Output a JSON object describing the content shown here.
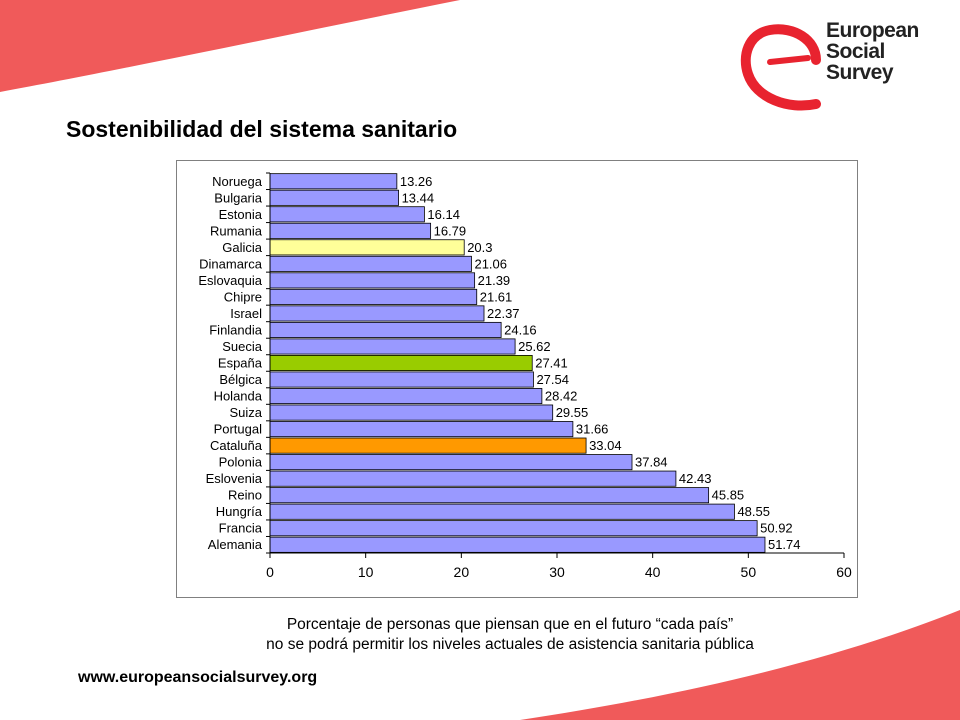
{
  "page": {
    "title": "Sostenibilidad del sistema sanitario",
    "caption_line1": "Porcentaje de personas que piensan que en el futuro “cada país”",
    "caption_line2": "no  se podrá permitir los niveles actuales de asistencia sanitaria pública",
    "website": "www.europeansocialsurvey.org",
    "logo": {
      "line1": "European",
      "line2": "Social",
      "line3": "Survey",
      "icon": "ess-logo-icon",
      "accent_color": "#e8232f"
    },
    "decor_color": "#f05a5a"
  },
  "chart_data": {
    "type": "bar",
    "orientation": "horizontal",
    "title": "",
    "xlabel": "",
    "ylabel": "",
    "categories": [
      "Noruega",
      "Bulgaria",
      "Estonia",
      "Rumania",
      "Galicia",
      "Dinamarca",
      "Eslovaquia",
      "Chipre",
      "Israel",
      "Finlandia",
      "Suecia",
      "España",
      "Bélgica",
      "Holanda",
      "Suiza",
      "Portugal",
      "Cataluña",
      "Polonia",
      "Eslovenia",
      "Reino",
      "Hungría",
      "Francia",
      "Alemania"
    ],
    "values": [
      13.26,
      13.44,
      16.14,
      16.79,
      20.3,
      21.06,
      21.39,
      21.61,
      22.37,
      24.16,
      25.62,
      27.41,
      27.54,
      28.42,
      29.55,
      31.66,
      33.04,
      37.84,
      42.43,
      45.85,
      48.55,
      50.92,
      51.74
    ],
    "value_labels": [
      "13.26",
      "13.44",
      "16.14",
      "16.79",
      "20.3",
      "21.06",
      "21.39",
      "21.61",
      "22.37",
      "24.16",
      "25.62",
      "27.41",
      "27.54",
      "28.42",
      "29.55",
      "31.66",
      "33.04",
      "37.84",
      "42.43",
      "45.85",
      "48.55",
      "50.92",
      "51.74"
    ],
    "xlim": [
      0,
      60
    ],
    "xticks": [
      0,
      10,
      20,
      30,
      40,
      50,
      60
    ],
    "grid": false,
    "legend": "none",
    "default_color": "#9999ff",
    "highlight_colors": {
      "Galicia": "#ffff99",
      "España": "#99cc00",
      "Cataluña": "#ff9900"
    }
  }
}
